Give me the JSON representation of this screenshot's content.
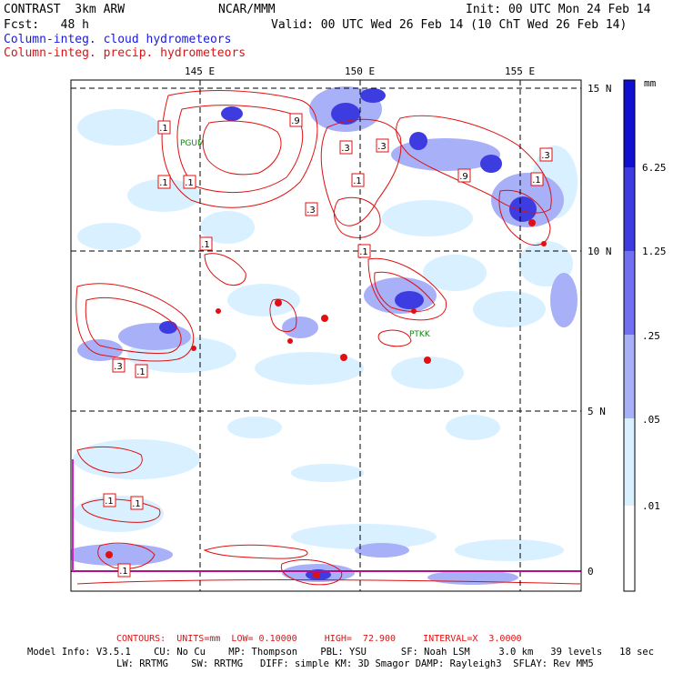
{
  "header": {
    "model": "CONTRAST  3km ARW",
    "center": "NCAR/MMM",
    "init": "Init: 00 UTC Mon 24 Feb 14",
    "fcst": "Fcst:   48 h",
    "valid": "Valid: 00 UTC Wed 26 Feb 14 (10 ChT Wed 26 Feb 14)",
    "field1": "Column-integ. cloud hydrometeors",
    "field2": "Column-integ. precip. hydrometeors"
  },
  "colors": {
    "cloud_field": "#1a1adc",
    "precip_field": "#e01010",
    "contour": "#e01010",
    "station": "#0a8a0a"
  },
  "axes": {
    "lon_labels": [
      "145 E",
      "150 E",
      "155 E"
    ],
    "lat_labels": [
      "15 N",
      "10 N",
      "5 N",
      "0"
    ]
  },
  "colorbar": {
    "unit": "mm",
    "levels": [
      "6.25",
      "1.25",
      ".25",
      ".05",
      ".01"
    ],
    "colors": [
      "#1010d0",
      "#3c3ce0",
      "#7070f0",
      "#a8b0f8",
      "#d8f0ff",
      "#ffffff"
    ]
  },
  "stations": [
    "PGUM",
    "PTKK"
  ],
  "contour_labels": [
    ".1",
    ".9",
    ".1",
    ".3",
    ".1",
    ".1",
    ".3",
    ".1",
    ".9",
    ".1",
    ".3",
    ".3",
    ".1",
    ".1",
    ".1",
    ".1",
    ".1",
    ".3"
  ],
  "footer": {
    "contours": "CONTOURS:  UNITS=mm  LOW= 0.10000     HIGH=  72.900     INTERVAL=X  3.0000",
    "model_info_1": "Model Info: V3.5.1    CU: No Cu    MP: Thompson    PBL: YSU      SF: Noah LSM     3.0 km   39 levels   18 sec",
    "model_info_2": "LW: RRTMG    SW: RRTMG   DIFF: simple KM: 3D Smagor DAMP: Rayleigh3  SFLAY: Rev MM5"
  }
}
